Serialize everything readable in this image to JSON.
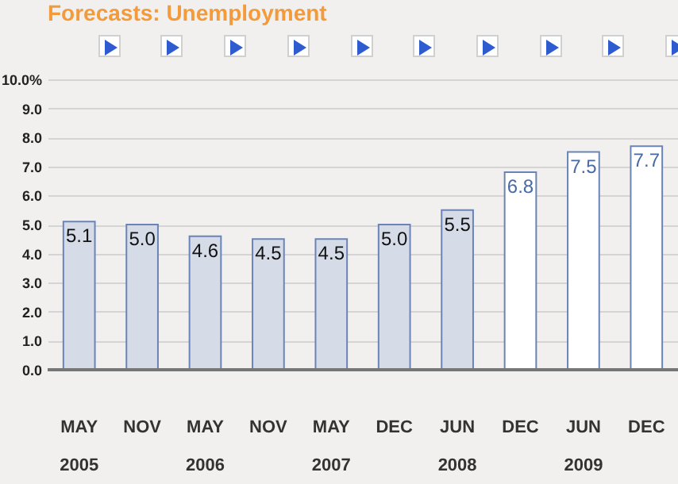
{
  "chart_data": {
    "type": "bar",
    "title": "Forecasts: Unemployment",
    "categories": [
      "MAY\n2005",
      "NOV",
      "MAY\n2006",
      "NOV",
      "MAY\n2007",
      "DEC",
      "JUN\n2008",
      "DEC",
      "JUN\n2009",
      "DEC"
    ],
    "values": [
      5.1,
      5.0,
      4.6,
      4.5,
      4.5,
      5.0,
      5.5,
      6.8,
      7.5,
      7.7
    ],
    "colors": [
      "#d5dce8",
      "#d5dce8",
      "#d5dce8",
      "#d5dce8",
      "#d5dce8",
      "#d5dce8",
      "#d5dce8",
      "#ffffff",
      "#ffffff",
      "#ffffff"
    ],
    "value_labels": [
      "5.1",
      "5.0",
      "4.6",
      "4.5",
      "4.5",
      "5.0",
      "5.5",
      "6.8",
      "7.5",
      "7.7"
    ],
    "ylim": [
      0,
      10
    ],
    "yticks": [
      {
        "value": 0,
        "label": "0.0"
      },
      {
        "value": 1,
        "label": "1.0"
      },
      {
        "value": 2,
        "label": "2.0"
      },
      {
        "value": 3,
        "label": "3.0"
      },
      {
        "value": 4,
        "label": "4.0"
      },
      {
        "value": 5,
        "label": "5.0"
      },
      {
        "value": 6,
        "label": "6.0"
      },
      {
        "value": 7,
        "label": "7.0"
      },
      {
        "value": 8,
        "label": "8.0"
      },
      {
        "value": 9,
        "label": "9.0"
      },
      {
        "value": 10,
        "label": "10.0%"
      }
    ],
    "grid": "y"
  }
}
